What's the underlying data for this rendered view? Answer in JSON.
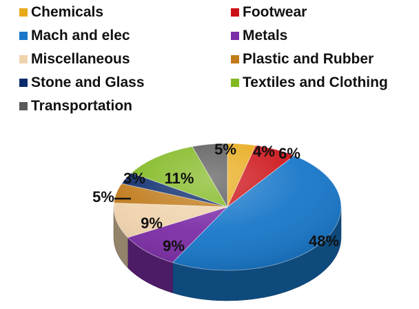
{
  "chart_data": {
    "type": "pie",
    "title": "",
    "legend_position": "top",
    "legend_columns": 2,
    "categories": [
      "Chemicals",
      "Footwear",
      "Mach and elec",
      "Metals",
      "Miscellaneous",
      "Plastic and Rubber",
      "Stone and Glass",
      "Textiles and Clothing",
      "Transportation"
    ],
    "values": [
      4,
      6,
      48,
      9,
      9,
      5,
      3,
      11,
      5
    ],
    "labels": [
      "4%",
      "6%",
      "48%",
      "9%",
      "9%",
      "5%",
      "3%",
      "11%",
      "5%"
    ],
    "colors": [
      "#e8aa1a",
      "#cc1116",
      "#1877c9",
      "#7c2da6",
      "#efd3ad",
      "#c07b1b",
      "#0a2a6c",
      "#80b81e",
      "#595959"
    ],
    "style": "3d-exploded-free"
  }
}
